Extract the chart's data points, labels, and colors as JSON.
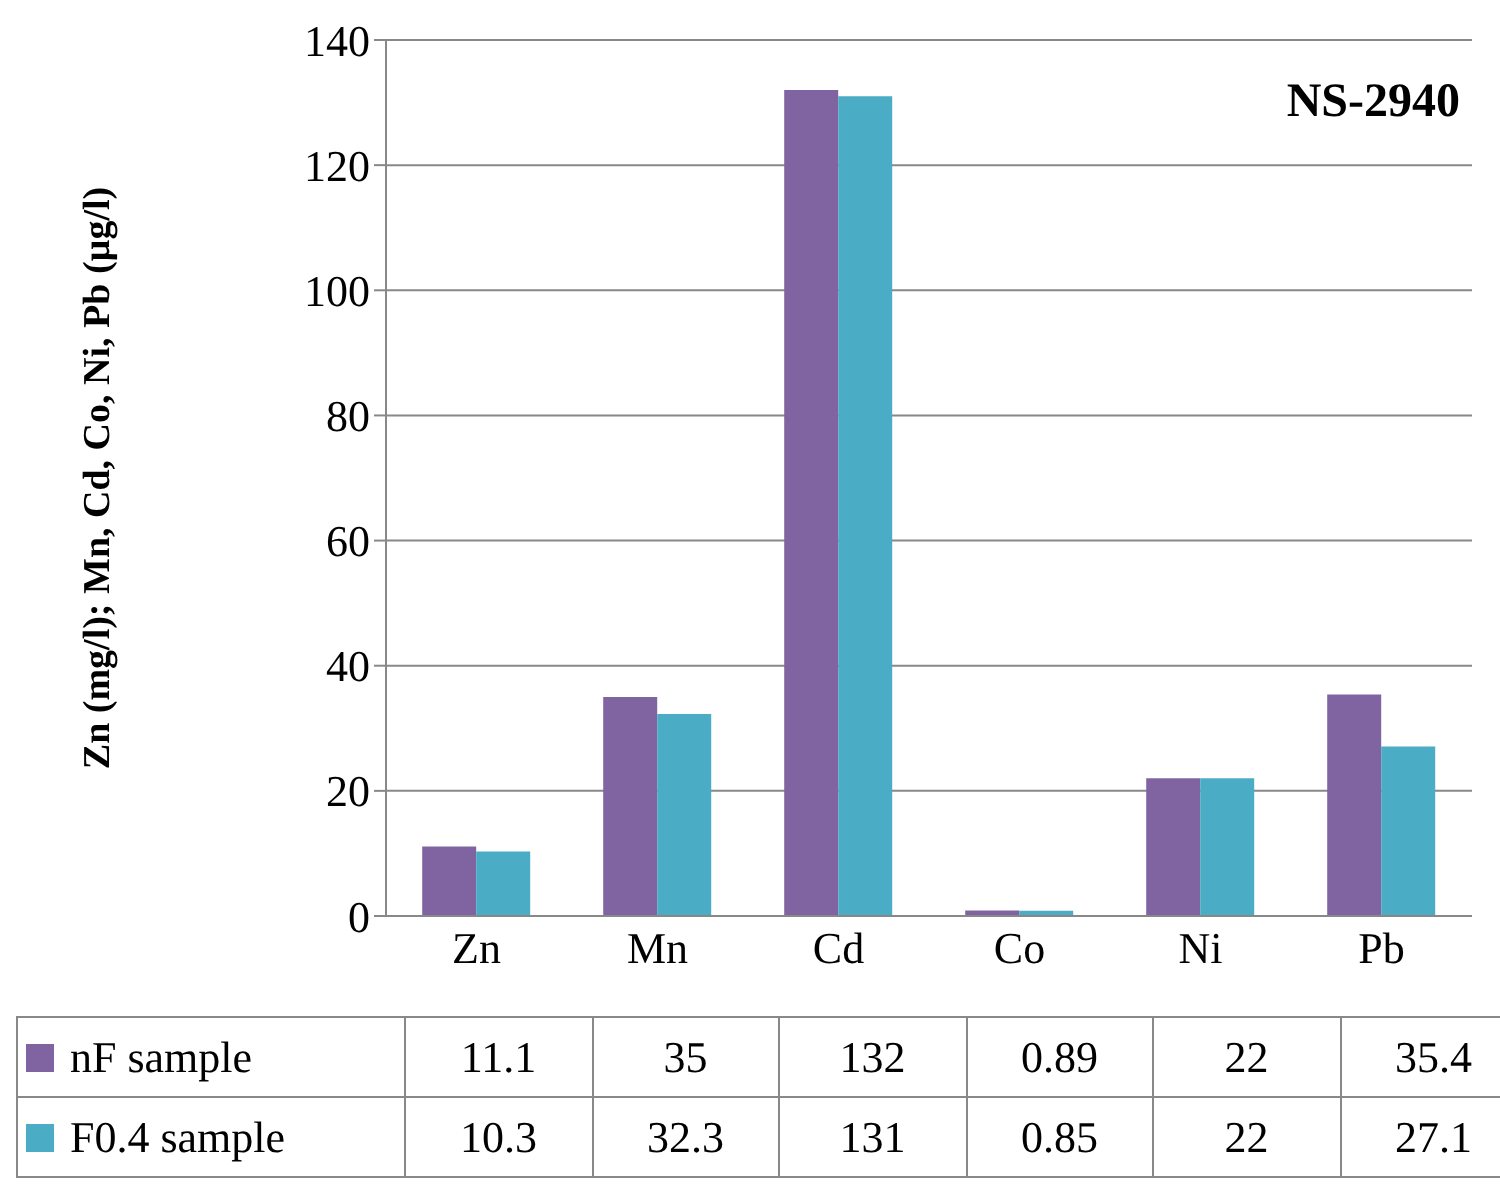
{
  "chart_data": {
    "type": "bar",
    "title": "NS-2940",
    "ylabel": "Zn (mg/l); Mn, Cd, Co, Ni, Pb (µg/l)",
    "categories": [
      "Zn",
      "Mn",
      "Cd",
      "Co",
      "Ni",
      "Pb"
    ],
    "series": [
      {
        "name": "nF sample",
        "color": "#8064a2",
        "values": [
          11.1,
          35,
          132,
          0.89,
          22,
          35.4
        ]
      },
      {
        "name": "F0.4 sample",
        "color": "#4bacc6",
        "values": [
          10.3,
          32.3,
          131,
          0.85,
          22,
          27.1
        ]
      }
    ],
    "ylim": [
      0,
      140
    ],
    "yticks": [
      0,
      20,
      40,
      60,
      80,
      100,
      120,
      140
    ],
    "grid": "y",
    "legend": "bottom",
    "data_labels": true
  }
}
